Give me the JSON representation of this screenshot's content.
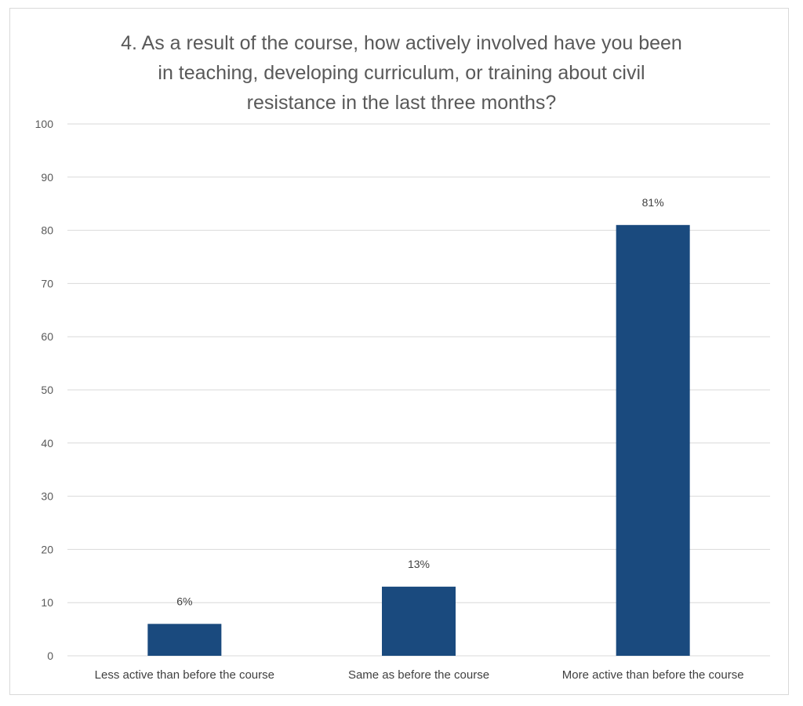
{
  "chart_data": {
    "type": "bar",
    "title_lines": [
      "4. As a result of the course, how actively involved have you been",
      "in teaching, developing curriculum, or training about civil",
      "resistance in the last three months?"
    ],
    "categories": [
      "Less active than before the course",
      "Same as before the course",
      "More active than before the course"
    ],
    "values": [
      6,
      13,
      81
    ],
    "data_labels": [
      "6%",
      "13%",
      "81%"
    ],
    "ylim": [
      0,
      100
    ],
    "yticks": [
      0,
      10,
      20,
      30,
      40,
      50,
      60,
      70,
      80,
      90,
      100
    ],
    "grid": true,
    "legend": "none",
    "bar_color": "#1a4a7e",
    "grid_color": "#d9d9d9"
  }
}
